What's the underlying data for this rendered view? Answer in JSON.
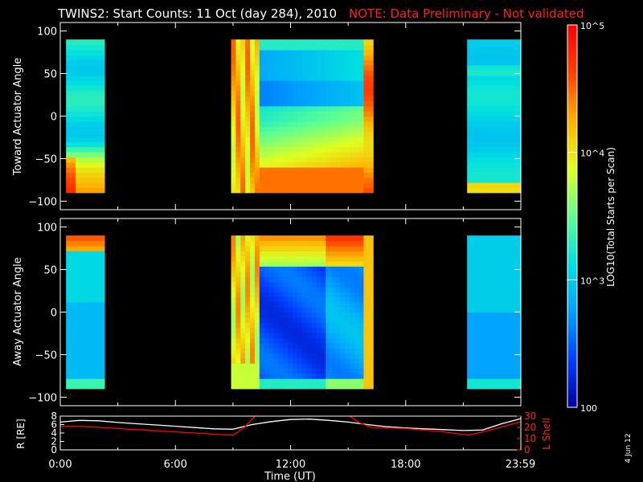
{
  "header": {
    "title": "TWINS2: Start Counts: 11 Oct (day 284), 2010",
    "note": "NOTE: Data Preliminary - Not validated"
  },
  "stamp": "4 Jun 12",
  "colorbar": {
    "label": "LOG10(Total Starts per Scan)",
    "ticks": [
      "10^5",
      "10^4",
      "10^3",
      "100"
    ],
    "tick_values": [
      100000,
      10000,
      1000,
      100
    ],
    "range": [
      100,
      100000
    ],
    "scale": "log",
    "colormap": [
      "#0000a0",
      "#0040ff",
      "#00a0ff",
      "#00e0e0",
      "#60ff90",
      "#e0ff20",
      "#ffb000",
      "#ff4000",
      "#ff0000"
    ]
  },
  "chart_data": [
    {
      "type": "heatmap",
      "panel": "toward",
      "ylabel": "Toward Actuator Angle",
      "ylim": [
        -110,
        110
      ],
      "yticks": [
        "100",
        "50",
        "0",
        "−50",
        "−100"
      ],
      "ytick_values": [
        100,
        50,
        0,
        -50,
        -100
      ],
      "xlim": [
        0,
        24
      ],
      "data_intervals_hours": [
        [
          0.3,
          2.3
        ],
        [
          8.9,
          16.3
        ],
        [
          21.2,
          24.0
        ]
      ],
      "data_angle_range": [
        -90,
        90
      ]
    },
    {
      "type": "heatmap",
      "panel": "away",
      "ylabel": "Away Actuator Angle",
      "ylim": [
        -110,
        110
      ],
      "yticks": [
        "100",
        "50",
        "0",
        "−50",
        "−100"
      ],
      "ytick_values": [
        100,
        50,
        0,
        -50,
        -100
      ],
      "xlim": [
        0,
        24
      ],
      "data_intervals_hours": [
        [
          0.3,
          2.3
        ],
        [
          8.9,
          16.3
        ],
        [
          21.2,
          24.0
        ]
      ],
      "data_angle_range": [
        -90,
        90
      ]
    },
    {
      "type": "line",
      "panel": "orbit",
      "xlabel": "Time (UT)",
      "xticks": [
        "0:00",
        "6:00",
        "12:00",
        "18:00",
        "23:59"
      ],
      "xtick_values": [
        0,
        6,
        12,
        18,
        23.98
      ],
      "ylabel_left": "R [RE]",
      "ylim_left": [
        0,
        8
      ],
      "yticks_left": [
        "8",
        "6",
        "4",
        "2",
        "0"
      ],
      "ylabel_right": "L Shell",
      "ylim_right": [
        0,
        30
      ],
      "yticks_right": [
        "30",
        "20",
        "10",
        "0"
      ],
      "series": [
        {
          "color": "#ffffff",
          "axis": "left",
          "x": [
            0,
            1,
            2,
            3,
            4,
            5,
            6,
            7,
            8,
            9,
            10,
            11,
            12,
            13,
            14,
            15,
            16,
            17,
            18,
            19,
            20,
            21,
            22,
            23,
            24
          ],
          "y": [
            6.6,
            7.0,
            6.9,
            6.5,
            6.2,
            5.9,
            5.6,
            5.3,
            5.0,
            4.9,
            6.0,
            6.7,
            7.2,
            7.3,
            7.0,
            6.6,
            6.0,
            5.5,
            5.2,
            5.0,
            4.8,
            4.6,
            4.7,
            6.2,
            7.4
          ]
        },
        {
          "color": "#ff0000",
          "axis": "right",
          "x": [
            0,
            1,
            2,
            3,
            4,
            5,
            6,
            7,
            8,
            9,
            9.6,
            10.2,
            15.0,
            15.6,
            16.2,
            18,
            20,
            21.3,
            22.5,
            24
          ],
          "y": [
            21,
            21,
            20,
            19,
            18,
            17,
            16,
            15,
            14,
            13,
            20,
            31,
            31,
            24,
            20,
            19,
            16,
            13,
            18,
            25
          ]
        }
      ]
    }
  ]
}
